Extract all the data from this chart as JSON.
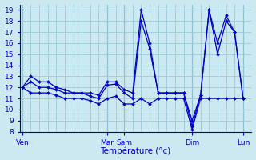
{
  "xlabel": "Température (°c)",
  "ylim": [
    8,
    19.5
  ],
  "yticks": [
    8,
    9,
    10,
    11,
    12,
    13,
    14,
    15,
    16,
    17,
    18,
    19
  ],
  "background_color": "#cce8f0",
  "grid_color": "#99ccd8",
  "line_color": "#0000cc",
  "day_labels": [
    "Ven",
    "Mar",
    "Sam",
    "Dim",
    "Lun"
  ],
  "day_x_positions": [
    0,
    10,
    12,
    20,
    26
  ],
  "xlim": [
    -0.3,
    27
  ],
  "n_points": 27,
  "series1": [
    12,
    13,
    12.5,
    12.5,
    12,
    11.8,
    11.5,
    11.5,
    11.5,
    11.3,
    12.5,
    12.5,
    11.8,
    11.5,
    19,
    16,
    11.5,
    11.5,
    11.5,
    11.5,
    9,
    11.3,
    19,
    16,
    18.5,
    17,
    11
  ],
  "series2": [
    12,
    12.5,
    12,
    12,
    11.8,
    11.5,
    11.5,
    11.5,
    11.2,
    11.0,
    12.2,
    12.3,
    11.5,
    11.0,
    18,
    15.5,
    11.5,
    11.5,
    11.5,
    11.5,
    8.5,
    11.3,
    19,
    15,
    18,
    17,
    11
  ],
  "series3": [
    12,
    11.5,
    11.5,
    11.5,
    11.3,
    11,
    11,
    11,
    10.8,
    10.5,
    11,
    11.2,
    10.5,
    10.5,
    11,
    10.5,
    11,
    11,
    11,
    11,
    8.2,
    11,
    11,
    11,
    11,
    11,
    11
  ]
}
